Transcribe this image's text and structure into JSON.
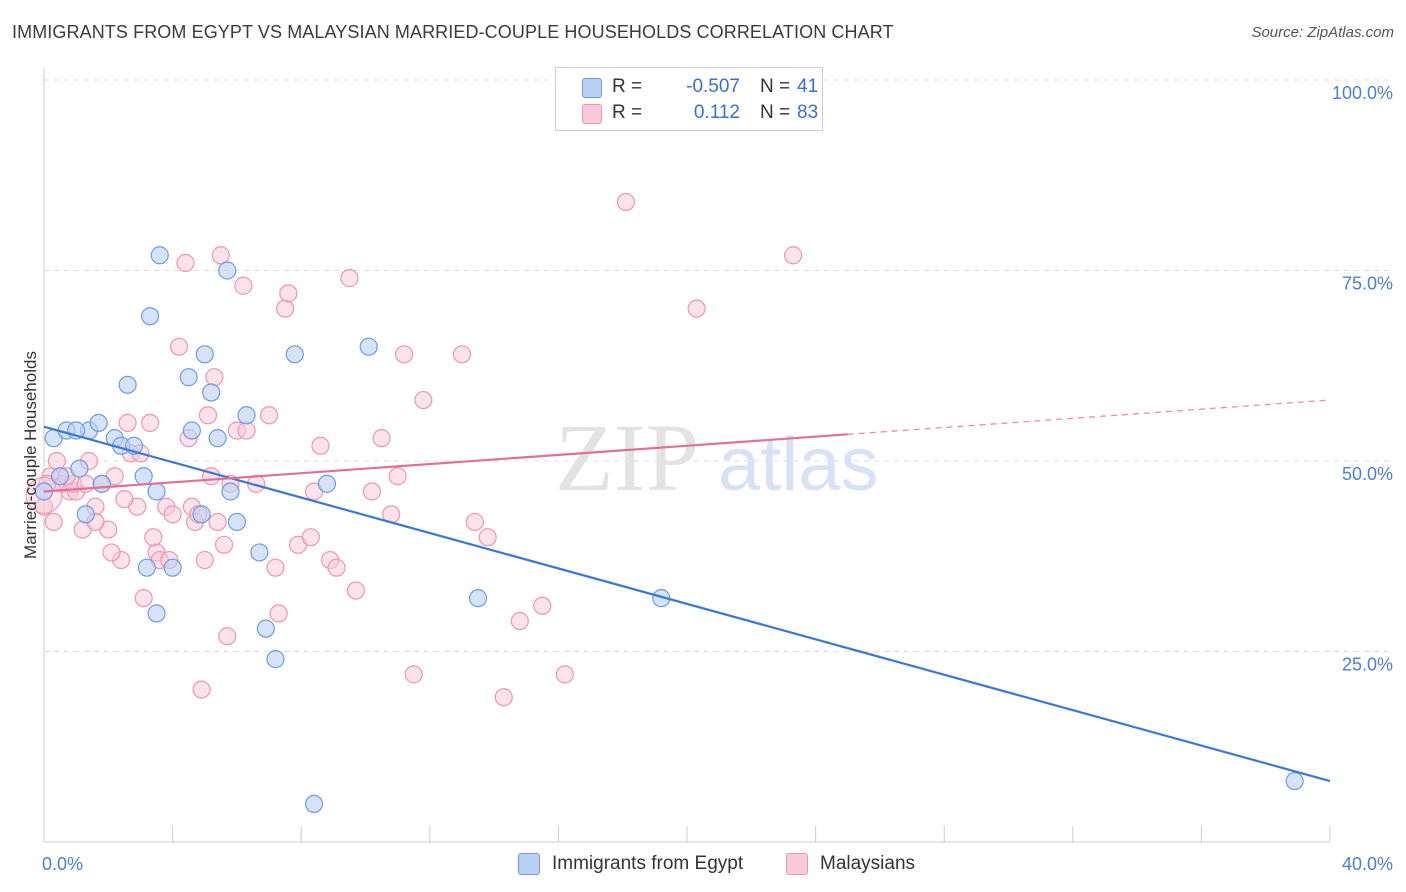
{
  "title": "IMMIGRANTS FROM EGYPT VS MALAYSIAN MARRIED-COUPLE HOUSEHOLDS CORRELATION CHART",
  "source": "Source: ZipAtlas.com",
  "watermark": {
    "zip": "ZIP",
    "atlas": "atlas"
  },
  "legend": {
    "rows": [
      {
        "r_label": "R =",
        "r_value": "-0.507",
        "n_label": "N =",
        "n_value": "41",
        "color": "#a9c4f0",
        "border": "#6f9be0"
      },
      {
        "r_label": "R =",
        "r_value": "0.112",
        "n_label": "N =",
        "n_value": "83",
        "color": "#f7bfd0",
        "border": "#e890ad"
      }
    ]
  },
  "bottom_legend": {
    "egypt": "Immigrants from Egypt",
    "malaysians": "Malaysians"
  },
  "chart_data": {
    "type": "scatter",
    "ylabel": "Married-couple Households",
    "xlim": [
      0,
      40
    ],
    "ylim": [
      0,
      100
    ],
    "x_tick_labels": [
      "0.0%",
      "40.0%"
    ],
    "y_ticks": [
      {
        "value": 100,
        "label": "100.0%"
      },
      {
        "value": 75,
        "label": "75.0%"
      },
      {
        "value": 50,
        "label": "50.0%"
      },
      {
        "value": 25,
        "label": "25.0%"
      }
    ],
    "colors": {
      "egypt_fill": "#b9d0f3",
      "egypt_stroke": "#6f9be0",
      "egypt_line": "#3b78d6",
      "malay_fill": "#f9cad8",
      "malay_stroke": "#eb97b3",
      "malay_line": "#e0709a"
    },
    "series": [
      {
        "name": "Immigrants from Egypt",
        "points": [
          [
            0.0,
            46
          ],
          [
            0.3,
            53
          ],
          [
            0.7,
            54
          ],
          [
            1.1,
            49
          ],
          [
            1.3,
            43
          ],
          [
            1.4,
            54
          ],
          [
            1.7,
            55
          ],
          [
            2.2,
            53
          ],
          [
            2.4,
            52
          ],
          [
            2.6,
            60
          ],
          [
            2.8,
            52
          ],
          [
            3.1,
            48
          ],
          [
            3.2,
            36
          ],
          [
            3.3,
            69
          ],
          [
            3.5,
            46
          ],
          [
            3.5,
            30
          ],
          [
            3.6,
            77
          ],
          [
            4.0,
            36
          ],
          [
            4.5,
            61
          ],
          [
            4.6,
            54
          ],
          [
            4.9,
            43
          ],
          [
            5.0,
            64
          ],
          [
            5.2,
            59
          ],
          [
            5.4,
            53
          ],
          [
            5.7,
            75
          ],
          [
            5.8,
            46
          ],
          [
            6.0,
            42
          ],
          [
            6.3,
            56
          ],
          [
            6.7,
            38
          ],
          [
            6.9,
            28
          ],
          [
            7.2,
            24
          ],
          [
            7.8,
            64
          ],
          [
            8.4,
            5
          ],
          [
            8.8,
            47
          ],
          [
            10.1,
            65
          ],
          [
            13.5,
            32
          ],
          [
            19.2,
            32
          ],
          [
            38.9,
            8
          ],
          [
            1.0,
            54
          ],
          [
            1.8,
            47
          ],
          [
            0.5,
            48
          ]
        ]
      },
      {
        "name": "Malaysians",
        "points": [
          [
            0.0,
            44
          ],
          [
            0.2,
            48
          ],
          [
            0.4,
            50
          ],
          [
            0.6,
            47
          ],
          [
            0.8,
            46
          ],
          [
            1.0,
            46
          ],
          [
            1.2,
            41
          ],
          [
            1.4,
            50
          ],
          [
            1.6,
            44
          ],
          [
            1.8,
            47
          ],
          [
            2.0,
            41
          ],
          [
            2.2,
            48
          ],
          [
            2.4,
            37
          ],
          [
            2.6,
            55
          ],
          [
            2.7,
            51
          ],
          [
            2.9,
            44
          ],
          [
            3.0,
            51
          ],
          [
            3.1,
            32
          ],
          [
            3.3,
            55
          ],
          [
            3.5,
            38
          ],
          [
            3.6,
            37
          ],
          [
            3.8,
            44
          ],
          [
            4.0,
            43
          ],
          [
            4.2,
            65
          ],
          [
            4.4,
            76
          ],
          [
            4.5,
            53
          ],
          [
            4.6,
            44
          ],
          [
            4.7,
            42
          ],
          [
            4.9,
            20
          ],
          [
            5.0,
            37
          ],
          [
            5.1,
            56
          ],
          [
            5.2,
            48
          ],
          [
            5.3,
            61
          ],
          [
            5.4,
            42
          ],
          [
            5.5,
            77
          ],
          [
            5.7,
            27
          ],
          [
            5.8,
            47
          ],
          [
            6.0,
            54
          ],
          [
            6.2,
            73
          ],
          [
            6.3,
            54
          ],
          [
            6.6,
            47
          ],
          [
            7.0,
            56
          ],
          [
            7.2,
            36
          ],
          [
            7.3,
            30
          ],
          [
            7.5,
            70
          ],
          [
            7.6,
            72
          ],
          [
            7.9,
            39
          ],
          [
            8.3,
            40
          ],
          [
            8.4,
            46
          ],
          [
            8.6,
            52
          ],
          [
            8.9,
            37
          ],
          [
            9.1,
            36
          ],
          [
            9.5,
            74
          ],
          [
            9.7,
            33
          ],
          [
            10.2,
            46
          ],
          [
            10.5,
            53
          ],
          [
            10.8,
            43
          ],
          [
            11.0,
            48
          ],
          [
            11.2,
            64
          ],
          [
            11.5,
            22
          ],
          [
            11.8,
            58
          ],
          [
            13.0,
            64
          ],
          [
            13.4,
            42
          ],
          [
            13.8,
            40
          ],
          [
            14.3,
            19
          ],
          [
            14.8,
            29
          ],
          [
            15.5,
            31
          ],
          [
            16.2,
            22
          ],
          [
            18.1,
            84
          ],
          [
            20.3,
            70
          ],
          [
            23.3,
            77
          ],
          [
            0.9,
            47
          ],
          [
            1.6,
            42
          ],
          [
            2.1,
            38
          ],
          [
            3.9,
            37
          ],
          [
            5.6,
            39
          ],
          [
            0.1,
            47
          ],
          [
            0.3,
            42
          ],
          [
            0.7,
            48
          ],
          [
            1.3,
            47
          ],
          [
            2.5,
            45
          ],
          [
            3.4,
            40
          ],
          [
            4.8,
            43
          ]
        ]
      }
    ],
    "trend_lines": [
      {
        "series": "Immigrants from Egypt",
        "x": [
          0,
          40
        ],
        "y": [
          54.5,
          8
        ]
      },
      {
        "series": "Malaysians",
        "x": [
          0,
          25
        ],
        "y": [
          46,
          53.5
        ],
        "dashed_extension_to": [
          40,
          58
        ]
      }
    ]
  }
}
